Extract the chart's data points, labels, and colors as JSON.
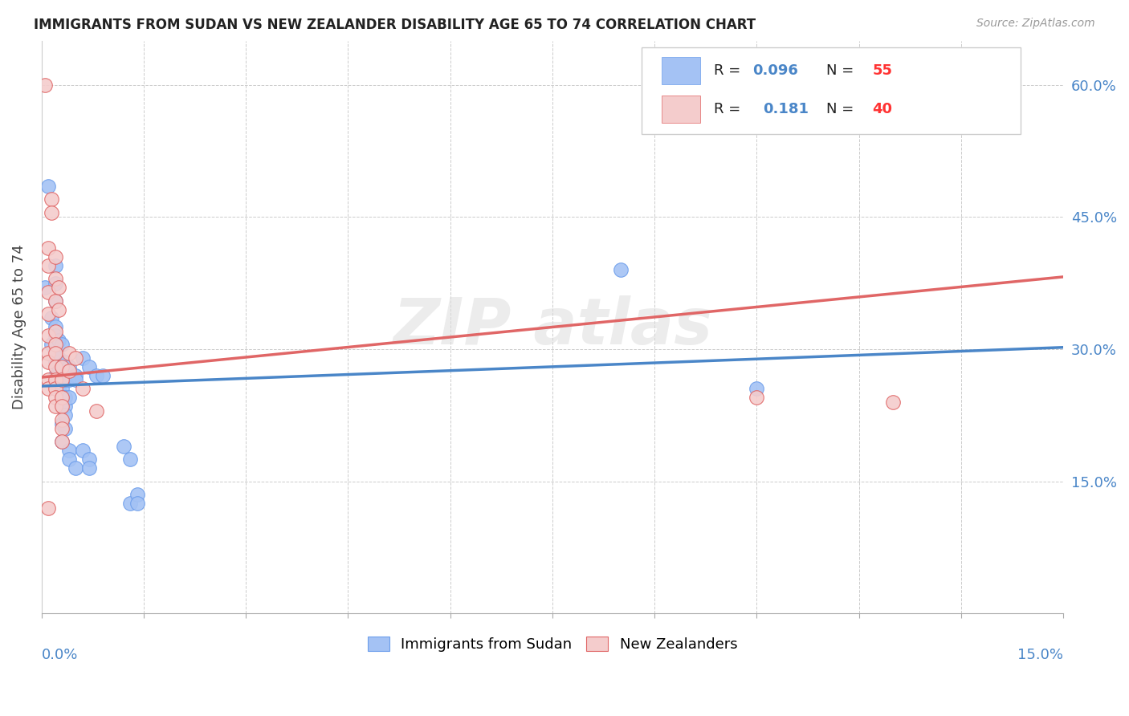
{
  "title": "IMMIGRANTS FROM SUDAN VS NEW ZEALANDER DISABILITY AGE 65 TO 74 CORRELATION CHART",
  "source": "Source: ZipAtlas.com",
  "ylabel": "Disability Age 65 to 74",
  "ytick_labels": [
    "15.0%",
    "30.0%",
    "45.0%",
    "60.0%"
  ],
  "ytick_values": [
    0.15,
    0.3,
    0.45,
    0.6
  ],
  "xlim": [
    0.0,
    0.15
  ],
  "ylim": [
    0.0,
    0.65
  ],
  "legend_bottom": "Immigrants from Sudan",
  "legend_bottom2": "New Zealanders",
  "blue_color": "#a4c2f4",
  "pink_color": "#f4cccc",
  "blue_edge_color": "#6d9eeb",
  "pink_edge_color": "#e06666",
  "blue_line_color": "#4a86c8",
  "pink_line_color": "#e06666",
  "R_text_color": "#4a86c8",
  "N_text_color": "#ff0000",
  "blue_reg": [
    0.0,
    0.258,
    0.15,
    0.302
  ],
  "pink_reg": [
    0.0,
    0.268,
    0.15,
    0.382
  ],
  "blue_scatter": [
    [
      0.0005,
      0.37
    ],
    [
      0.001,
      0.485
    ],
    [
      0.0015,
      0.335
    ],
    [
      0.0015,
      0.305
    ],
    [
      0.002,
      0.395
    ],
    [
      0.002,
      0.375
    ],
    [
      0.002,
      0.355
    ],
    [
      0.002,
      0.325
    ],
    [
      0.002,
      0.315
    ],
    [
      0.002,
      0.295
    ],
    [
      0.002,
      0.285
    ],
    [
      0.002,
      0.27
    ],
    [
      0.002,
      0.265
    ],
    [
      0.0025,
      0.31
    ],
    [
      0.0025,
      0.29
    ],
    [
      0.0025,
      0.28
    ],
    [
      0.0025,
      0.27
    ],
    [
      0.0025,
      0.265
    ],
    [
      0.0025,
      0.255
    ],
    [
      0.003,
      0.305
    ],
    [
      0.003,
      0.28
    ],
    [
      0.003,
      0.27
    ],
    [
      0.003,
      0.265
    ],
    [
      0.003,
      0.255
    ],
    [
      0.003,
      0.245
    ],
    [
      0.003,
      0.235
    ],
    [
      0.003,
      0.215
    ],
    [
      0.003,
      0.195
    ],
    [
      0.0035,
      0.285
    ],
    [
      0.0035,
      0.265
    ],
    [
      0.0035,
      0.245
    ],
    [
      0.0035,
      0.235
    ],
    [
      0.0035,
      0.225
    ],
    [
      0.0035,
      0.21
    ],
    [
      0.004,
      0.28
    ],
    [
      0.004,
      0.265
    ],
    [
      0.004,
      0.245
    ],
    [
      0.004,
      0.185
    ],
    [
      0.004,
      0.175
    ],
    [
      0.005,
      0.27
    ],
    [
      0.005,
      0.265
    ],
    [
      0.005,
      0.165
    ],
    [
      0.006,
      0.29
    ],
    [
      0.006,
      0.185
    ],
    [
      0.007,
      0.28
    ],
    [
      0.007,
      0.175
    ],
    [
      0.007,
      0.165
    ],
    [
      0.008,
      0.27
    ],
    [
      0.009,
      0.27
    ],
    [
      0.012,
      0.19
    ],
    [
      0.013,
      0.175
    ],
    [
      0.013,
      0.125
    ],
    [
      0.014,
      0.135
    ],
    [
      0.014,
      0.125
    ],
    [
      0.085,
      0.39
    ],
    [
      0.105,
      0.255
    ]
  ],
  "pink_scatter": [
    [
      0.0005,
      0.6
    ],
    [
      0.001,
      0.415
    ],
    [
      0.001,
      0.395
    ],
    [
      0.001,
      0.365
    ],
    [
      0.001,
      0.34
    ],
    [
      0.001,
      0.315
    ],
    [
      0.001,
      0.295
    ],
    [
      0.001,
      0.285
    ],
    [
      0.001,
      0.265
    ],
    [
      0.001,
      0.255
    ],
    [
      0.001,
      0.12
    ],
    [
      0.0015,
      0.47
    ],
    [
      0.0015,
      0.455
    ],
    [
      0.002,
      0.405
    ],
    [
      0.002,
      0.38
    ],
    [
      0.002,
      0.355
    ],
    [
      0.002,
      0.32
    ],
    [
      0.002,
      0.305
    ],
    [
      0.002,
      0.295
    ],
    [
      0.002,
      0.28
    ],
    [
      0.002,
      0.265
    ],
    [
      0.002,
      0.255
    ],
    [
      0.002,
      0.245
    ],
    [
      0.002,
      0.235
    ],
    [
      0.0025,
      0.37
    ],
    [
      0.0025,
      0.345
    ],
    [
      0.003,
      0.28
    ],
    [
      0.003,
      0.265
    ],
    [
      0.003,
      0.245
    ],
    [
      0.003,
      0.235
    ],
    [
      0.003,
      0.22
    ],
    [
      0.003,
      0.21
    ],
    [
      0.003,
      0.195
    ],
    [
      0.004,
      0.295
    ],
    [
      0.004,
      0.275
    ],
    [
      0.005,
      0.29
    ],
    [
      0.006,
      0.255
    ],
    [
      0.008,
      0.23
    ],
    [
      0.105,
      0.245
    ],
    [
      0.125,
      0.24
    ]
  ],
  "background_color": "#ffffff",
  "grid_color": "#cccccc",
  "title_color": "#222222",
  "source_color": "#999999"
}
